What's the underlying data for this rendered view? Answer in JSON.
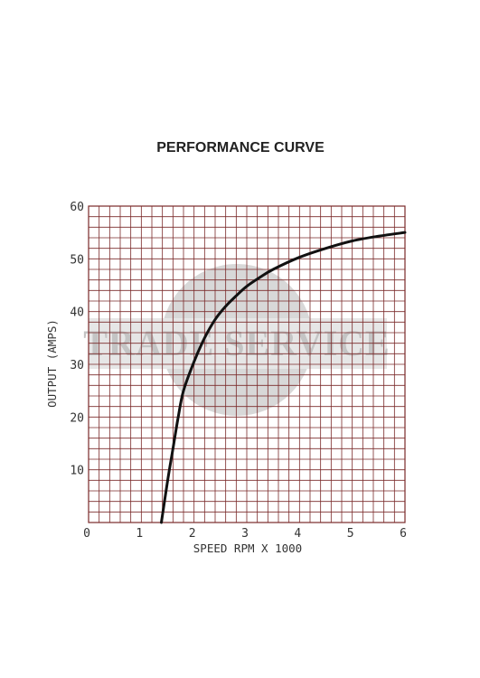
{
  "chart_data": {
    "type": "line",
    "title": "PERFORMANCE CURVE",
    "xlabel": "SPEED RPM X 1000",
    "ylabel": "OUTPUT (AMPS)",
    "xlim": [
      0,
      6
    ],
    "ylim": [
      0,
      60
    ],
    "xticks": [
      "0",
      "1",
      "2",
      "3",
      "4",
      "5",
      "6"
    ],
    "yticks": [
      "10",
      "20",
      "30",
      "40",
      "50",
      "60"
    ],
    "grid": true,
    "grid_color": "#7a2a2a",
    "line_color": "#111111",
    "watermark": "TRADE SERVICE",
    "series": [
      {
        "x": [
          1.38,
          1.5,
          1.6,
          1.7,
          1.8,
          2.0,
          2.2,
          2.4,
          2.6,
          2.8,
          3.0,
          3.25,
          3.5,
          4.0,
          4.5,
          5.0,
          5.5,
          6.0
        ],
        "y": [
          0,
          8,
          14,
          20,
          25,
          30.5,
          35,
          38.5,
          41,
          43,
          44.8,
          46.5,
          48,
          50.3,
          52,
          53.4,
          54.3,
          55
        ]
      }
    ]
  }
}
